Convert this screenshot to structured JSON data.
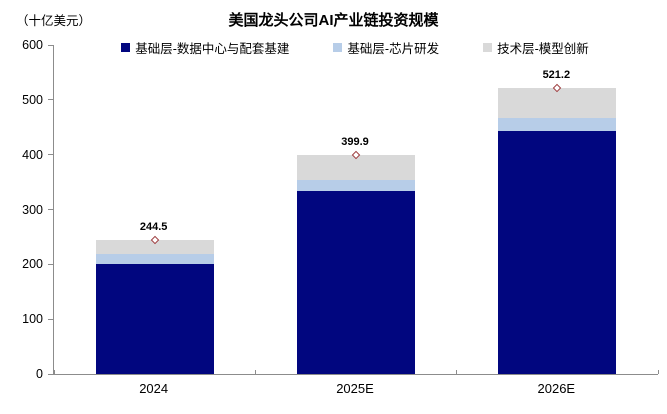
{
  "chart_data": {
    "type": "bar",
    "variant": "stacked",
    "title": "美国龙头公司AI产业链投资规模",
    "unit_label": "（十亿美元）",
    "categories": [
      "2024",
      "2025E",
      "2026E"
    ],
    "series": [
      {
        "name": "基础层-数据中心与配套基建",
        "color": "#01067F",
        "values": [
          200.0,
          334.0,
          443.0
        ]
      },
      {
        "name": "基础层-芯片研发",
        "color": "#B7CDE8",
        "values": [
          19.5,
          20.0,
          23.2
        ]
      },
      {
        "name": "技术层-模型创新",
        "color": "#D9D9D9",
        "values": [
          25.0,
          45.9,
          55.0
        ]
      }
    ],
    "totals": [
      244.5,
      399.9,
      521.2
    ],
    "total_labels": [
      "244.5",
      "399.9",
      "521.2"
    ],
    "total_marker": {
      "shape": "hollow-diamond",
      "color": "#9C3A3C"
    },
    "y_axis": {
      "min": 0,
      "max": 600,
      "step": 100,
      "tick_labels": [
        "0",
        "100",
        "200",
        "300",
        "400",
        "500",
        "600"
      ]
    },
    "axis_color": "#8c8c8c",
    "gridlines": false,
    "legend_position": "top"
  }
}
